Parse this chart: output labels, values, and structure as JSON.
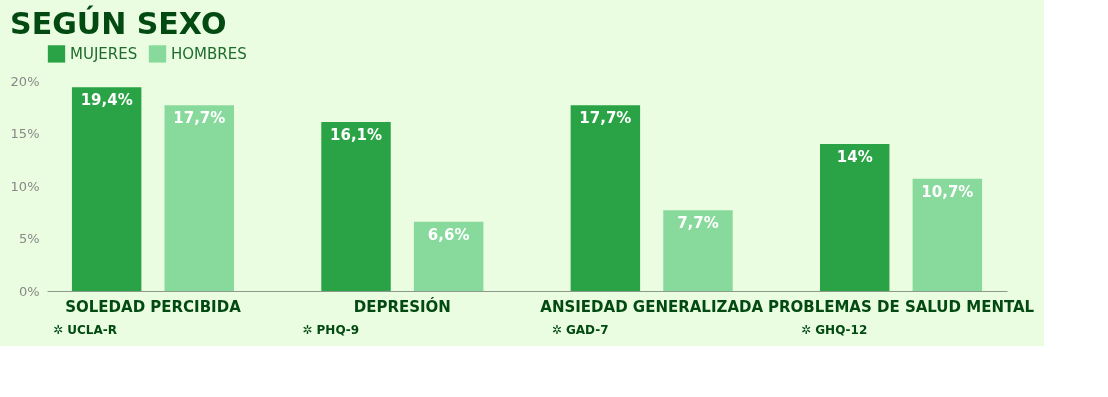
{
  "chart_data": {
    "type": "bar",
    "title": "SEGÚN SEXO",
    "categories": [
      "SOLEDAD PERCIBIDA",
      "DEPRESIÓN",
      "ANSIEDAD GENERALIZADA",
      "PROBLEMAS DE SALUD MENTAL"
    ],
    "series": [
      {
        "name": "MUJERES",
        "color": "#2aa346",
        "values": [
          19.4,
          16.1,
          17.7,
          14
        ],
        "value_labels": [
          "19,4%",
          "16,1%",
          "17,7%",
          "14%"
        ]
      },
      {
        "name": "HOMBRES",
        "color": "#88d99c",
        "values": [
          17.7,
          6.6,
          7.7,
          10.7
        ],
        "value_labels": [
          "17,7%",
          "6,6%",
          "7,7%",
          "10,7%"
        ]
      }
    ],
    "ylim": [
      0,
      20
    ],
    "yticks": [
      {
        "value": 0,
        "label": "0%"
      },
      {
        "value": 5,
        "label": "5%"
      },
      {
        "value": 10,
        "label": "10%"
      },
      {
        "value": 15,
        "label": "15%"
      },
      {
        "value": 20,
        "label": "20%"
      }
    ],
    "annotations": [
      "✲ UCLA-R",
      "✲ PHQ-9",
      "✲ GAD-7",
      "✲ GHQ-12"
    ],
    "grid": false,
    "legend": "top left"
  }
}
